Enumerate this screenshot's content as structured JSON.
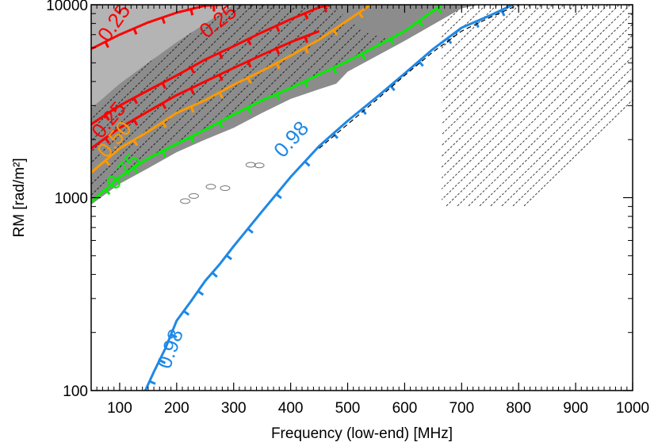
{
  "chart_data": {
    "type": "line",
    "title": "",
    "xlabel": "Frequency (low-end) [MHz]",
    "ylabel": "RM [rad/m²]",
    "xlim": [
      50,
      1000
    ],
    "ylim": [
      100,
      10000
    ],
    "yscale": "log",
    "x_ticks": [
      100,
      200,
      300,
      400,
      500,
      600,
      700,
      800,
      900,
      1000
    ],
    "x_tick_labels": [
      "100",
      "200",
      "300",
      "400",
      "500",
      "600",
      "700",
      "800",
      "900",
      "1000"
    ],
    "y_ticks": [
      100,
      1000,
      10000
    ],
    "y_tick_labels": [
      "100",
      "1000",
      "10000"
    ],
    "colors": {
      "dark_region": "#8c8c8c",
      "light_region": "#b4b4b4",
      "red": "#ff0000",
      "orange": "#ff9900",
      "green": "#00ee00",
      "blue": "#1e88e5",
      "dashed": "#000000"
    },
    "shaded_regions": [
      {
        "name": "dark-grey region",
        "boundary_lower": [
          [
            50,
            920
          ],
          [
            100,
            1180
          ],
          [
            150,
            1420
          ],
          [
            200,
            1720
          ],
          [
            250,
            2000
          ],
          [
            300,
            2300
          ],
          [
            350,
            2750
          ],
          [
            400,
            3250
          ],
          [
            450,
            3650
          ],
          [
            480,
            3900
          ],
          [
            500,
            4500
          ],
          [
            600,
            6500
          ],
          [
            700,
            9600
          ],
          [
            730,
            10000
          ]
        ]
      },
      {
        "name": "light-grey region",
        "boundary_lower": [
          [
            50,
            2900
          ],
          [
            100,
            3900
          ],
          [
            150,
            5000
          ],
          [
            200,
            6400
          ],
          [
            250,
            8000
          ],
          [
            300,
            10000
          ]
        ]
      }
    ],
    "series": [
      {
        "name": "0.25 (upper)",
        "label": "0.25",
        "color": "#ff0000",
        "x": [
          50,
          100,
          150,
          200,
          250,
          280
        ],
        "y": [
          5900,
          7000,
          8100,
          9100,
          9900,
          10000
        ]
      },
      {
        "name": "0.25 (middle)",
        "label": "0.25",
        "color": "#ff0000",
        "x": [
          50,
          100,
          150,
          200,
          250,
          300,
          350,
          400,
          450,
          470
        ],
        "y": [
          2400,
          3000,
          3600,
          4300,
          5200,
          6100,
          7200,
          8400,
          9700,
          10000
        ]
      },
      {
        "name": "0.25 (lower)",
        "label": "0.25",
        "color": "#ff0000",
        "x": [
          50,
          100,
          150,
          200,
          250,
          300,
          350,
          400,
          450
        ],
        "y": [
          1800,
          2300,
          2800,
          3400,
          4000,
          4700,
          5500,
          6400,
          7300
        ]
      },
      {
        "name": "0.50",
        "label": "0.50",
        "color": "#ff9900",
        "x": [
          50,
          100,
          150,
          200,
          250,
          300,
          350,
          400,
          450,
          500,
          540
        ],
        "y": [
          1350,
          1800,
          2200,
          2750,
          3200,
          3850,
          4550,
          5450,
          6600,
          8300,
          10000
        ]
      },
      {
        "name": "0.75",
        "label": "0.75",
        "color": "#00ee00",
        "x": [
          50,
          100,
          150,
          200,
          250,
          300,
          350,
          400,
          450,
          500,
          550,
          600,
          650,
          665
        ],
        "y": [
          950,
          1280,
          1600,
          1900,
          2250,
          2700,
          3200,
          3700,
          4350,
          5100,
          6100,
          7300,
          9300,
          10000
        ]
      },
      {
        "name": "0.98",
        "label": "0.98",
        "color": "#1e88e5",
        "x": [
          145,
          160,
          180,
          200,
          225,
          250,
          275,
          300,
          350,
          400,
          450,
          500,
          550,
          600,
          650,
          700,
          750,
          790
        ],
        "y": [
          100,
          125,
          165,
          230,
          290,
          370,
          450,
          560,
          850,
          1280,
          1850,
          2500,
          3300,
          4400,
          5900,
          7600,
          8800,
          10000
        ]
      },
      {
        "name": "0.98 (dashed)",
        "label": "",
        "color": "#000000",
        "dashed": true,
        "x": [
          450,
          500,
          550,
          600,
          650,
          700,
          750,
          800
        ],
        "y": [
          1800,
          2400,
          3200,
          4300,
          5700,
          7300,
          8600,
          10000
        ]
      }
    ],
    "annotations": [
      {
        "text": "0.25",
        "color": "#ff0000",
        "x": 100,
        "y": 7700,
        "rotation": -55
      },
      {
        "text": "0.25",
        "color": "#ff0000",
        "x": 280,
        "y": 7700,
        "rotation": -38
      },
      {
        "text": "0.25",
        "color": "#ff0000",
        "x": 90,
        "y": 2400,
        "rotation": -50
      },
      {
        "text": "0.50",
        "color": "#ff9900",
        "x": 100,
        "y": 1900,
        "rotation": -50
      },
      {
        "text": "0.75",
        "color": "#00ee00",
        "x": 115,
        "y": 1300,
        "rotation": -50
      },
      {
        "text": "0.98",
        "color": "#1e88e5",
        "x": 410,
        "y": 1900,
        "rotation": -48
      },
      {
        "text": "0.98",
        "color": "#1e88e5",
        "x": 200,
        "y": 160,
        "rotation": -70
      }
    ]
  }
}
